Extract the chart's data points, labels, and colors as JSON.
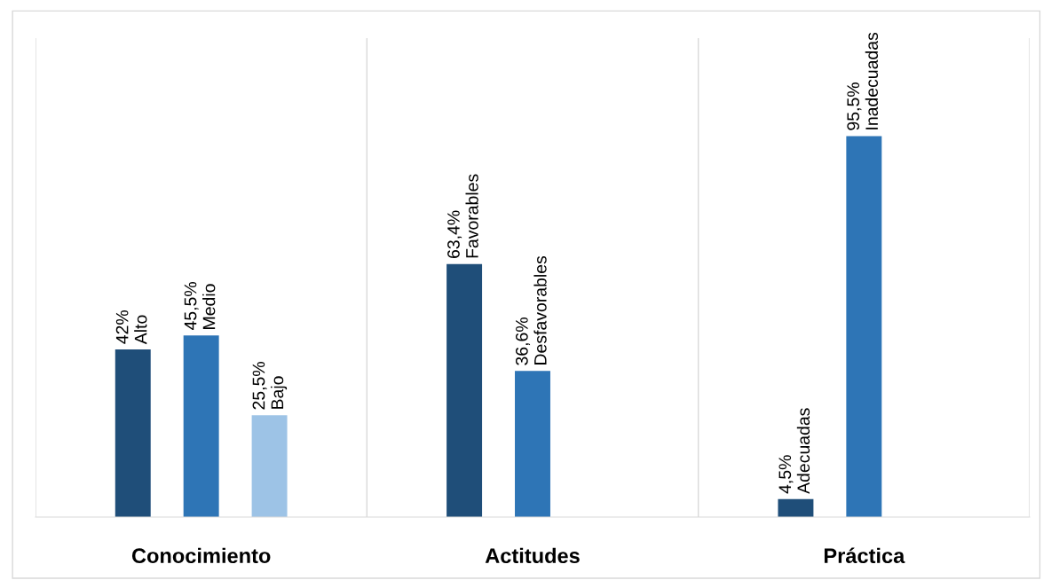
{
  "chart_data": {
    "type": "bar",
    "categories": [
      "Conocimiento",
      "Actitudes",
      "Práctica"
    ],
    "series": [
      {
        "color": "#1f4e79",
        "values": [
          42,
          63.4,
          4.5
        ],
        "value_labels": [
          "42%\nAlto",
          "63,4%\nFavorables",
          "4,5%\nAdecuadas"
        ]
      },
      {
        "color": "#2e75b6",
        "values": [
          45.5,
          36.6,
          95.5
        ],
        "value_labels": [
          "45,5%\nMedio",
          "36,6%\nDesfavorables",
          "95,5%\nInadecuadas"
        ]
      },
      {
        "color": "#9dc3e6",
        "values": [
          25.5,
          null,
          null
        ],
        "value_labels": [
          "25,5%\nBajo",
          null,
          null
        ]
      }
    ],
    "grid": false,
    "legend": false
  }
}
